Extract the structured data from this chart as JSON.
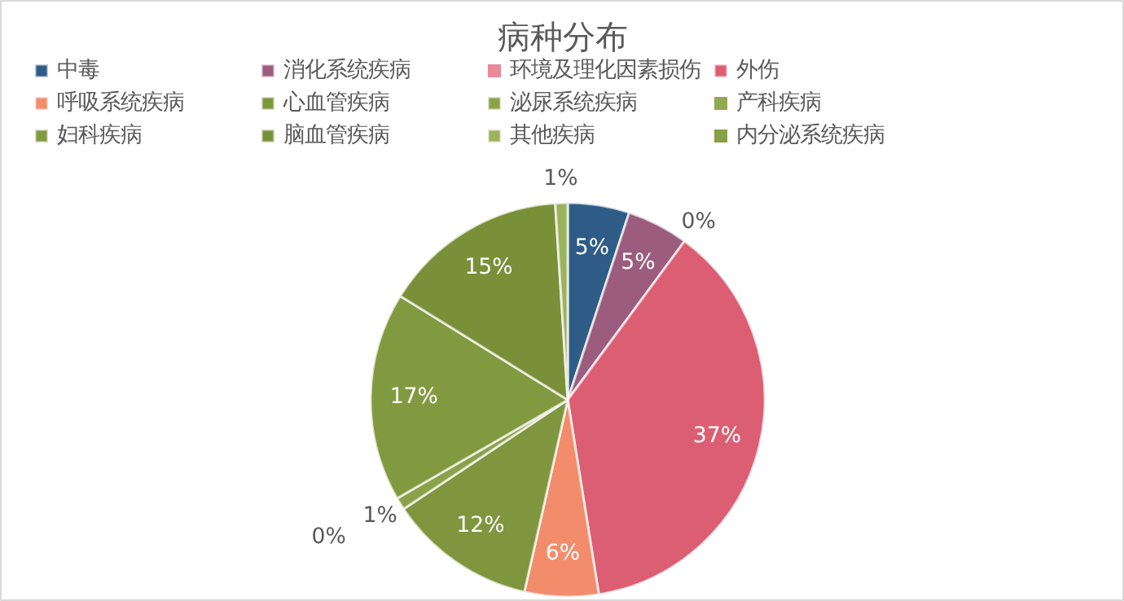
{
  "chart_data": {
    "type": "pie",
    "title": "病种分布",
    "categories": [
      "中毒",
      "消化系统疾病",
      "环境及理化因素损伤",
      "外伤",
      "呼吸系统疾病",
      "心血管疾病",
      "泌尿系统疾病",
      "产科疾病",
      "妇科疾病",
      "脑血管疾病",
      "其他疾病",
      "内分泌系统疾病"
    ],
    "values": [
      5,
      5,
      0,
      37,
      6,
      12,
      1,
      0,
      17,
      15,
      1,
      0
    ],
    "value_labels": [
      "5%",
      "5%",
      "0%",
      "37%",
      "6%",
      "12%",
      "1%",
      "0%",
      "17%",
      "15%",
      "1%",
      null
    ],
    "colors": [
      "#2e5c87",
      "#9c5c7e",
      "#e88a9a",
      "#dc5e72",
      "#f28c6b",
      "#7f963e",
      "#8ba24a",
      "#93a852",
      "#829a3f",
      "#7a9038",
      "#9bb25e",
      "#88a046"
    ],
    "legend": "top"
  }
}
